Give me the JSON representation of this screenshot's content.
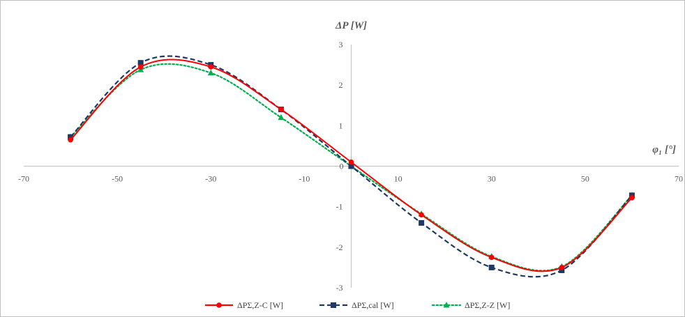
{
  "chart_data": {
    "type": "line",
    "title": "",
    "xlabel": "φ₁ [°]",
    "ylabel": "ΔP [W]",
    "xlim": [
      -70,
      70
    ],
    "ylim": [
      -3,
      3
    ],
    "x_ticks": [
      -70,
      -50,
      -30,
      -10,
      10,
      30,
      50,
      70
    ],
    "y_ticks": [
      3,
      2,
      1,
      0,
      -1,
      -2,
      -3
    ],
    "origin_label": "0",
    "grid": false,
    "legend_position": "bottom",
    "series": [
      {
        "name": "ΔPΣ,Z-C [W]",
        "color": "#ff0000",
        "line_style": "solid",
        "marker": "circle",
        "x": [
          -60,
          -45,
          -30,
          -15,
          0,
          15,
          30,
          45,
          60
        ],
        "y": [
          0.65,
          2.45,
          2.45,
          1.4,
          0.1,
          -1.2,
          -2.25,
          -2.5,
          -0.78
        ]
      },
      {
        "name": "ΔPΣ,cal [W]",
        "color": "#1f3864",
        "line_style": "dashed",
        "marker": "square",
        "x": [
          -60,
          -45,
          -30,
          -15,
          0,
          15,
          30,
          45,
          60
        ],
        "y": [
          0.72,
          2.55,
          2.5,
          1.4,
          0.0,
          -1.4,
          -2.5,
          -2.57,
          -0.72
        ]
      },
      {
        "name": "ΔPΣ,Z-Z [W]",
        "color": "#00b050",
        "line_style": "dotted",
        "marker": "triangle",
        "x": [
          -60,
          -45,
          -30,
          -15,
          0,
          15,
          30,
          45,
          60
        ],
        "y": [
          0.72,
          2.38,
          2.3,
          1.2,
          0.0,
          -1.18,
          -2.23,
          -2.48,
          -0.72
        ]
      }
    ]
  }
}
